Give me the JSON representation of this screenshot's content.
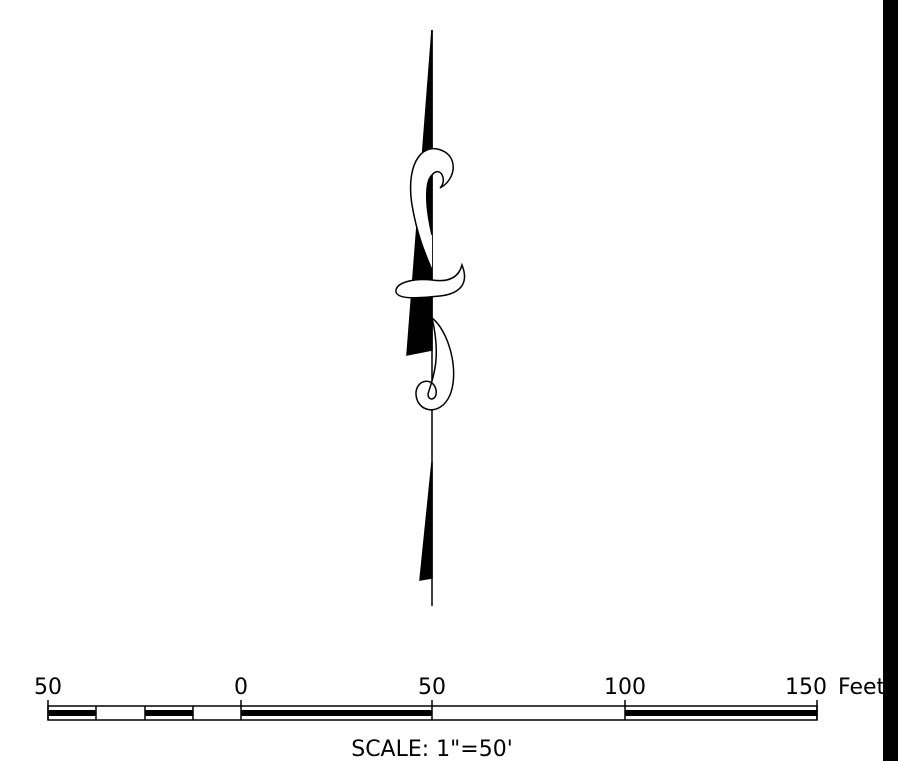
{
  "scale_bar": {
    "labels": [
      "50",
      "0",
      "50",
      "100",
      "150"
    ],
    "unit": "Feet",
    "caption": "SCALE: 1\"=50'"
  }
}
